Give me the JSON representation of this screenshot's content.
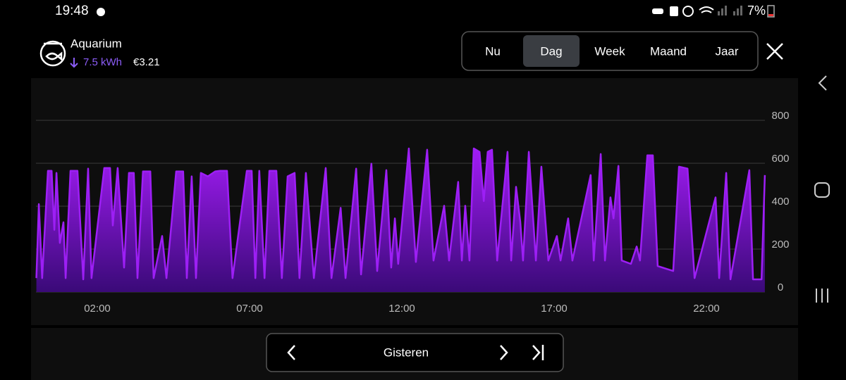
{
  "status_bar": {
    "time": "19:48",
    "battery": "7%"
  },
  "header": {
    "title": "Aquarium",
    "energy": "7.5 kWh",
    "cost": "€3.21"
  },
  "tabs": [
    "Nu",
    "Dag",
    "Week",
    "Maand",
    "Jaar"
  ],
  "selected_tab": 1,
  "chart_data": {
    "type": "area",
    "color": "#9d1ff5",
    "x": [
      0,
      0.08,
      0.19,
      0.38,
      0.5,
      0.59,
      0.66,
      0.77,
      0.89,
      0.96,
      1.12,
      1.35,
      1.54,
      1.7,
      1.81,
      2.23,
      2.42,
      2.51,
      2.67,
      2.88,
      3.04,
      3.2,
      3.32,
      3.5,
      3.74,
      3.85,
      4.13,
      4.27,
      4.43,
      4.59,
      4.82,
      4.94,
      5.1,
      5.24,
      5.4,
      5.63,
      5.87,
      6.03,
      6.26,
      6.44,
      6.91,
      7.07,
      7.19,
      7.32,
      7.49,
      7.65,
      7.88,
      8.06,
      8.25,
      8.48,
      8.64,
      8.85,
      9.11,
      9.5,
      9.69,
      9.99,
      10.15,
      10.5,
      10.66,
      11,
      11.19,
      11.49,
      11.65,
      11.77,
      11.88,
      12.23,
      12.46,
      12.83,
      13.04,
      13.39,
      13.55,
      13.85,
      13.97,
      14.08,
      14.22,
      14.36,
      14.55,
      14.69,
      14.82,
      14.96,
      15.13,
      15.47,
      15.59,
      15.75,
      15.89,
      15.98,
      16.17,
      16.4,
      16.58,
      16.81,
      17.09,
      17.21,
      17.46,
      17.6,
      18.2,
      18.3,
      18.53,
      18.67,
      18.85,
      18.95,
      19.11,
      19.22,
      19.52,
      19.71,
      19.82,
      20.06,
      20.24,
      20.4,
      20.91,
      21.1,
      21.38,
      21.61,
      22.3,
      22.42,
      22.65,
      22.79,
      23.41,
      23.53,
      23.81,
      23.92
    ],
    "values": [
      65,
      410,
      65,
      565,
      565,
      290,
      555,
      229,
      325,
      65,
      565,
      565,
      59,
      575,
      65,
      578,
      578,
      310,
      578,
      114,
      555,
      555,
      65,
      562,
      562,
      65,
      261,
      65,
      310,
      562,
      562,
      65,
      539,
      65,
      555,
      539,
      562,
      565,
      565,
      65,
      565,
      565,
      65,
      565,
      65,
      565,
      565,
      65,
      539,
      555,
      65,
      555,
      65,
      578,
      65,
      392,
      65,
      575,
      82,
      598,
      98,
      568,
      114,
      343,
      131,
      669,
      140,
      663,
      147,
      402,
      147,
      513,
      147,
      402,
      147,
      669,
      653,
      424,
      653,
      663,
      147,
      653,
      147,
      490,
      327,
      147,
      653,
      147,
      584,
      147,
      261,
      147,
      343,
      147,
      545,
      147,
      643,
      147,
      441,
      343,
      588,
      147,
      131,
      212,
      147,
      637,
      637,
      121,
      98,
      584,
      575,
      65,
      441,
      65,
      555,
      59,
      568,
      59,
      59,
      545
    ],
    "xlim": [
      0,
      24
    ],
    "xticks": [
      {
        "value": 2,
        "label": "02:00"
      },
      {
        "value": 7,
        "label": "07:00"
      },
      {
        "value": 12,
        "label": "12:00"
      },
      {
        "value": 17,
        "label": "17:00"
      },
      {
        "value": 22,
        "label": "22:00"
      }
    ],
    "ylim": [
      0,
      800
    ],
    "yticks": [
      0,
      200,
      400,
      600,
      800
    ],
    "grid": true
  },
  "navigator": {
    "label": "Gisteren"
  }
}
